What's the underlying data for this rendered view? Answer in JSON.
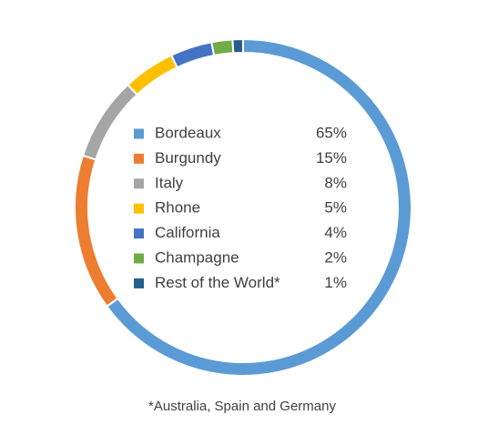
{
  "chart_data": {
    "type": "donut",
    "categories": [
      "Bordeaux",
      "Burgundy",
      "Italy",
      "Rhone",
      "California",
      "Champagne",
      "Rest of the World*"
    ],
    "values": [
      65,
      15,
      8,
      5,
      4,
      2,
      1
    ],
    "value_labels": [
      "65%",
      "15%",
      "8%",
      "5%",
      "4%",
      "2%",
      "1%"
    ],
    "colors": [
      "#5b9bd5",
      "#ed7d31",
      "#a5a5a5",
      "#ffc000",
      "#4472c4",
      "#70ad47",
      "#255e91"
    ],
    "footnote": "*Australia, Spain and Germany"
  }
}
